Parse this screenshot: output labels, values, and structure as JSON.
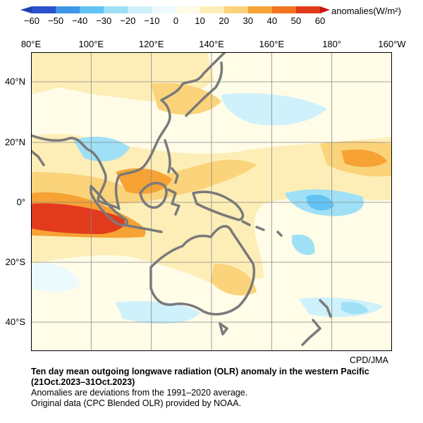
{
  "colorbar": {
    "ticks": [
      "−60",
      "−50",
      "−40",
      "−30",
      "−20",
      "−10",
      "0",
      "10",
      "20",
      "30",
      "40",
      "50",
      "60"
    ],
    "colors": [
      "#2a52cc",
      "#3e96e6",
      "#62c2f4",
      "#9fe0f6",
      "#cef1fb",
      "#ecfafd",
      "#fffce8",
      "#fdeeb7",
      "#fbd37a",
      "#f6a234",
      "#f2741f",
      "#e23a1c"
    ],
    "label": "anomalies(W/m²)"
  },
  "map": {
    "lon_labels": [
      "80°E",
      "100°E",
      "120°E",
      "140°E",
      "160°E",
      "180°",
      "160°W"
    ],
    "lat_labels": [
      "40°N",
      "20°N",
      "0°",
      "20°S",
      "40°S"
    ],
    "credit": "CPD/JMA",
    "coast_color": "#7a7a7a"
  },
  "caption": {
    "title_line1": "Ten day mean outgoing longwave radiation (OLR) anomaly in the western Pacific",
    "title_line2": "(21Oct.2023–31Oct.2023)",
    "note1": "Anomalies are deviations from the 1991–2020 average.",
    "note2": "Original data (CPC Blended OLR) provided by NOAA."
  }
}
